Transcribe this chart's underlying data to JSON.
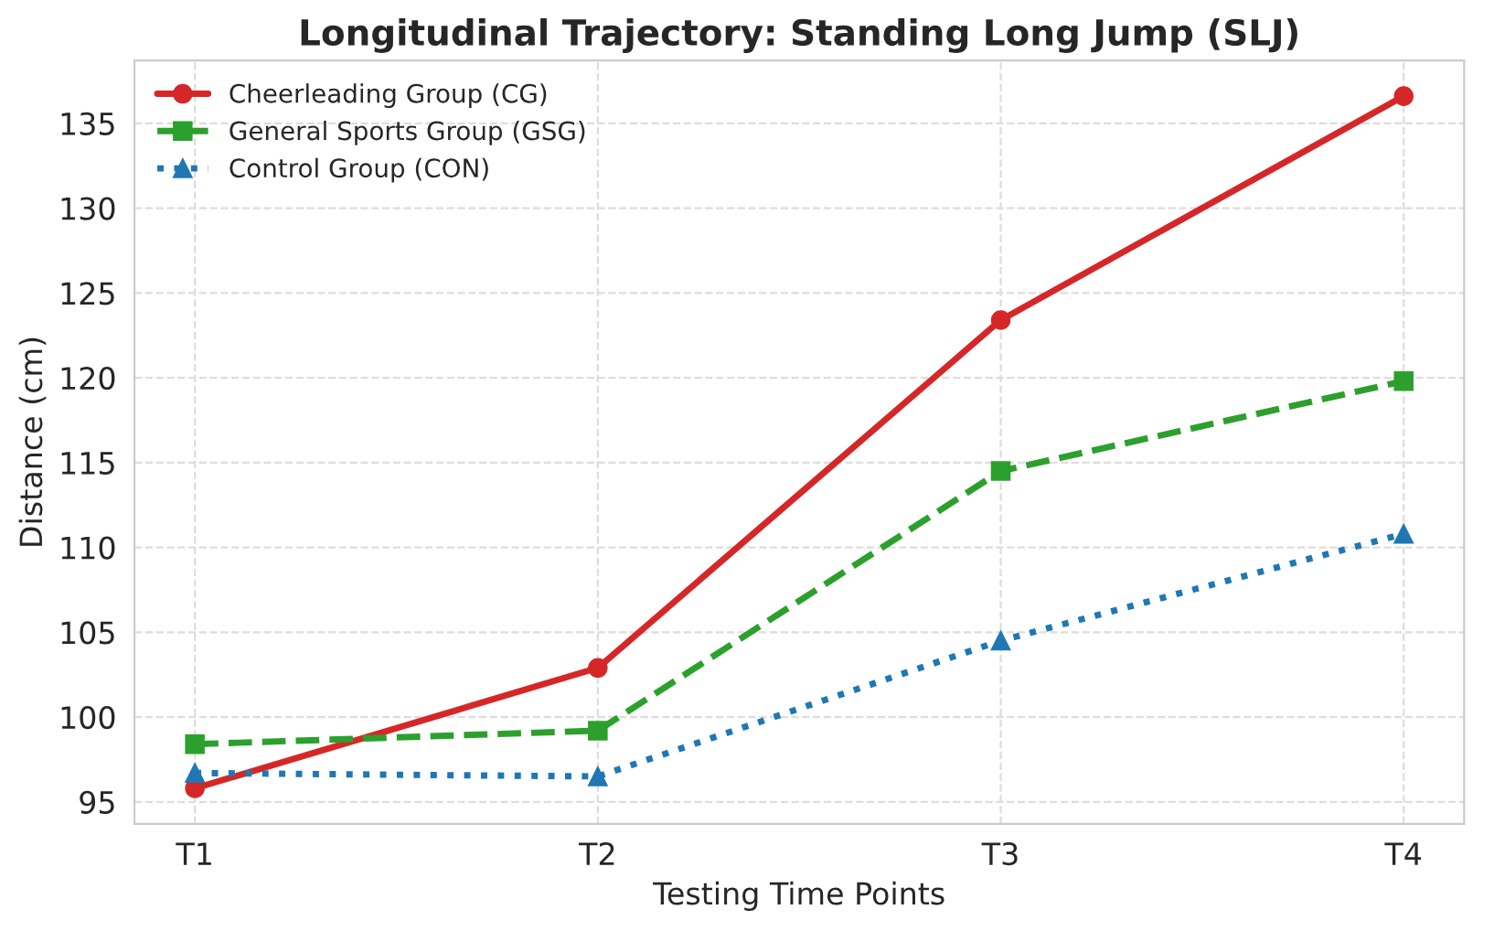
{
  "chart_data": {
    "type": "line",
    "title": "Longitudinal Trajectory: Standing Long Jump (SLJ)",
    "xlabel": "Testing Time Points",
    "ylabel": "Distance (cm)",
    "categories": [
      "T1",
      "T2",
      "T3",
      "T4"
    ],
    "series": [
      {
        "name": "Cheerleading Group (CG)",
        "color": "#d62728",
        "values": [
          95.8,
          102.9,
          123.4,
          136.6
        ],
        "marker": "circle",
        "line_style": "solid"
      },
      {
        "name": "General Sports Group (GSG)",
        "color": "#2ca02c",
        "values": [
          98.4,
          99.2,
          114.5,
          119.8
        ],
        "marker": "square",
        "line_style": "dashed"
      },
      {
        "name": "Control Group (CON)",
        "color": "#1f77b4",
        "values": [
          96.7,
          96.5,
          104.5,
          110.8
        ],
        "marker": "triangle",
        "line_style": "dotted"
      }
    ],
    "ylim": [
      93.7,
      138.7
    ],
    "yticks": [
      95,
      100,
      105,
      110,
      115,
      120,
      125,
      130,
      135
    ],
    "grid": true,
    "legend": "top left"
  }
}
